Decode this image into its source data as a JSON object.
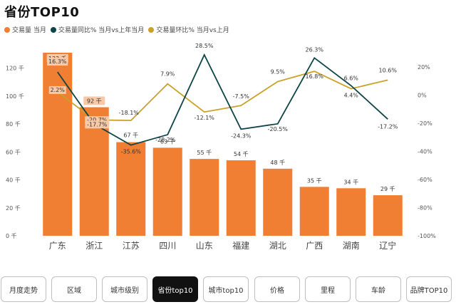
{
  "header": {
    "title": "省份TOP10"
  },
  "legend": [
    {
      "label": "交易量 当月",
      "color": "#F07F33"
    },
    {
      "label": "交易量同比% 当月vs上年当月",
      "color": "#0E4446"
    },
    {
      "label": "交易量环比% 当月vs上月",
      "color": "#C9A227"
    }
  ],
  "chart_data": {
    "type": "bar",
    "title": "省份TOP10",
    "categories": [
      "广东",
      "浙江",
      "江苏",
      "四川",
      "山东",
      "福建",
      "湖北",
      "广西",
      "湖南",
      "辽宁"
    ],
    "series": [
      {
        "name": "交易量 当月",
        "type": "bar",
        "axis": "left",
        "color": "#F07F33",
        "values": [
          133,
          92,
          67,
          63,
          55,
          54,
          48,
          35,
          34,
          29
        ],
        "labels": [
          "133 千",
          "92 千",
          "67 千",
          "63 千",
          "55 千",
          "54 千",
          "48 千",
          "35 千",
          "34 千",
          "29 千"
        ]
      },
      {
        "name": "交易量同比% 当月vs上年当月",
        "type": "line",
        "axis": "right",
        "color": "#0E4446",
        "values": [
          16.3,
          -20.7,
          -35.6,
          -28.2,
          28.5,
          -24.3,
          -20.5,
          26.3,
          6.6,
          -17.2
        ],
        "labels": [
          "16.3%",
          "-20.7%",
          "-35.6%",
          "-28.2%",
          "28.5%",
          "-24.3%",
          "-20.5%",
          "26.3%",
          "6.6%",
          "-17.2%"
        ]
      },
      {
        "name": "交易量环比% 当月vs上月",
        "type": "line",
        "axis": "right",
        "color": "#C9A227",
        "values": [
          2.2,
          -17.7,
          -18.1,
          7.9,
          -12.1,
          -7.5,
          9.5,
          16.8,
          4.4,
          10.6
        ],
        "labels": [
          "2.2%",
          "-17.7%",
          "-18.1%",
          "7.9%",
          "-12.1%",
          "-7.5%",
          "9.5%",
          "16.8%",
          "4.4%",
          "10.6%"
        ]
      }
    ],
    "left_axis": {
      "min": 0,
      "max": 131,
      "ticks": [
        0,
        20,
        40,
        60,
        80,
        100,
        120
      ],
      "tick_labels": [
        "0 千",
        "20 千",
        "40 千",
        "60 千",
        "80 千",
        "100 千",
        "120 千"
      ]
    },
    "right_axis": {
      "min": -100,
      "max": 30,
      "ticks": [
        -100,
        -80,
        -60,
        -40,
        -20,
        0,
        20
      ],
      "tick_labels": [
        "-100%",
        "-80%",
        "-60%",
        "-40%",
        "-20%",
        "0%",
        "20%"
      ]
    }
  },
  "tabs": [
    {
      "label": "月度走势",
      "active": false
    },
    {
      "label": "区域",
      "active": false
    },
    {
      "label": "城市级别",
      "active": false
    },
    {
      "label": "省份top10",
      "active": true
    },
    {
      "label": "城市top10",
      "active": false
    },
    {
      "label": "价格",
      "active": false
    },
    {
      "label": "里程",
      "active": false
    },
    {
      "label": "车龄",
      "active": false
    },
    {
      "label": "品牌TOP10",
      "active": false
    }
  ]
}
